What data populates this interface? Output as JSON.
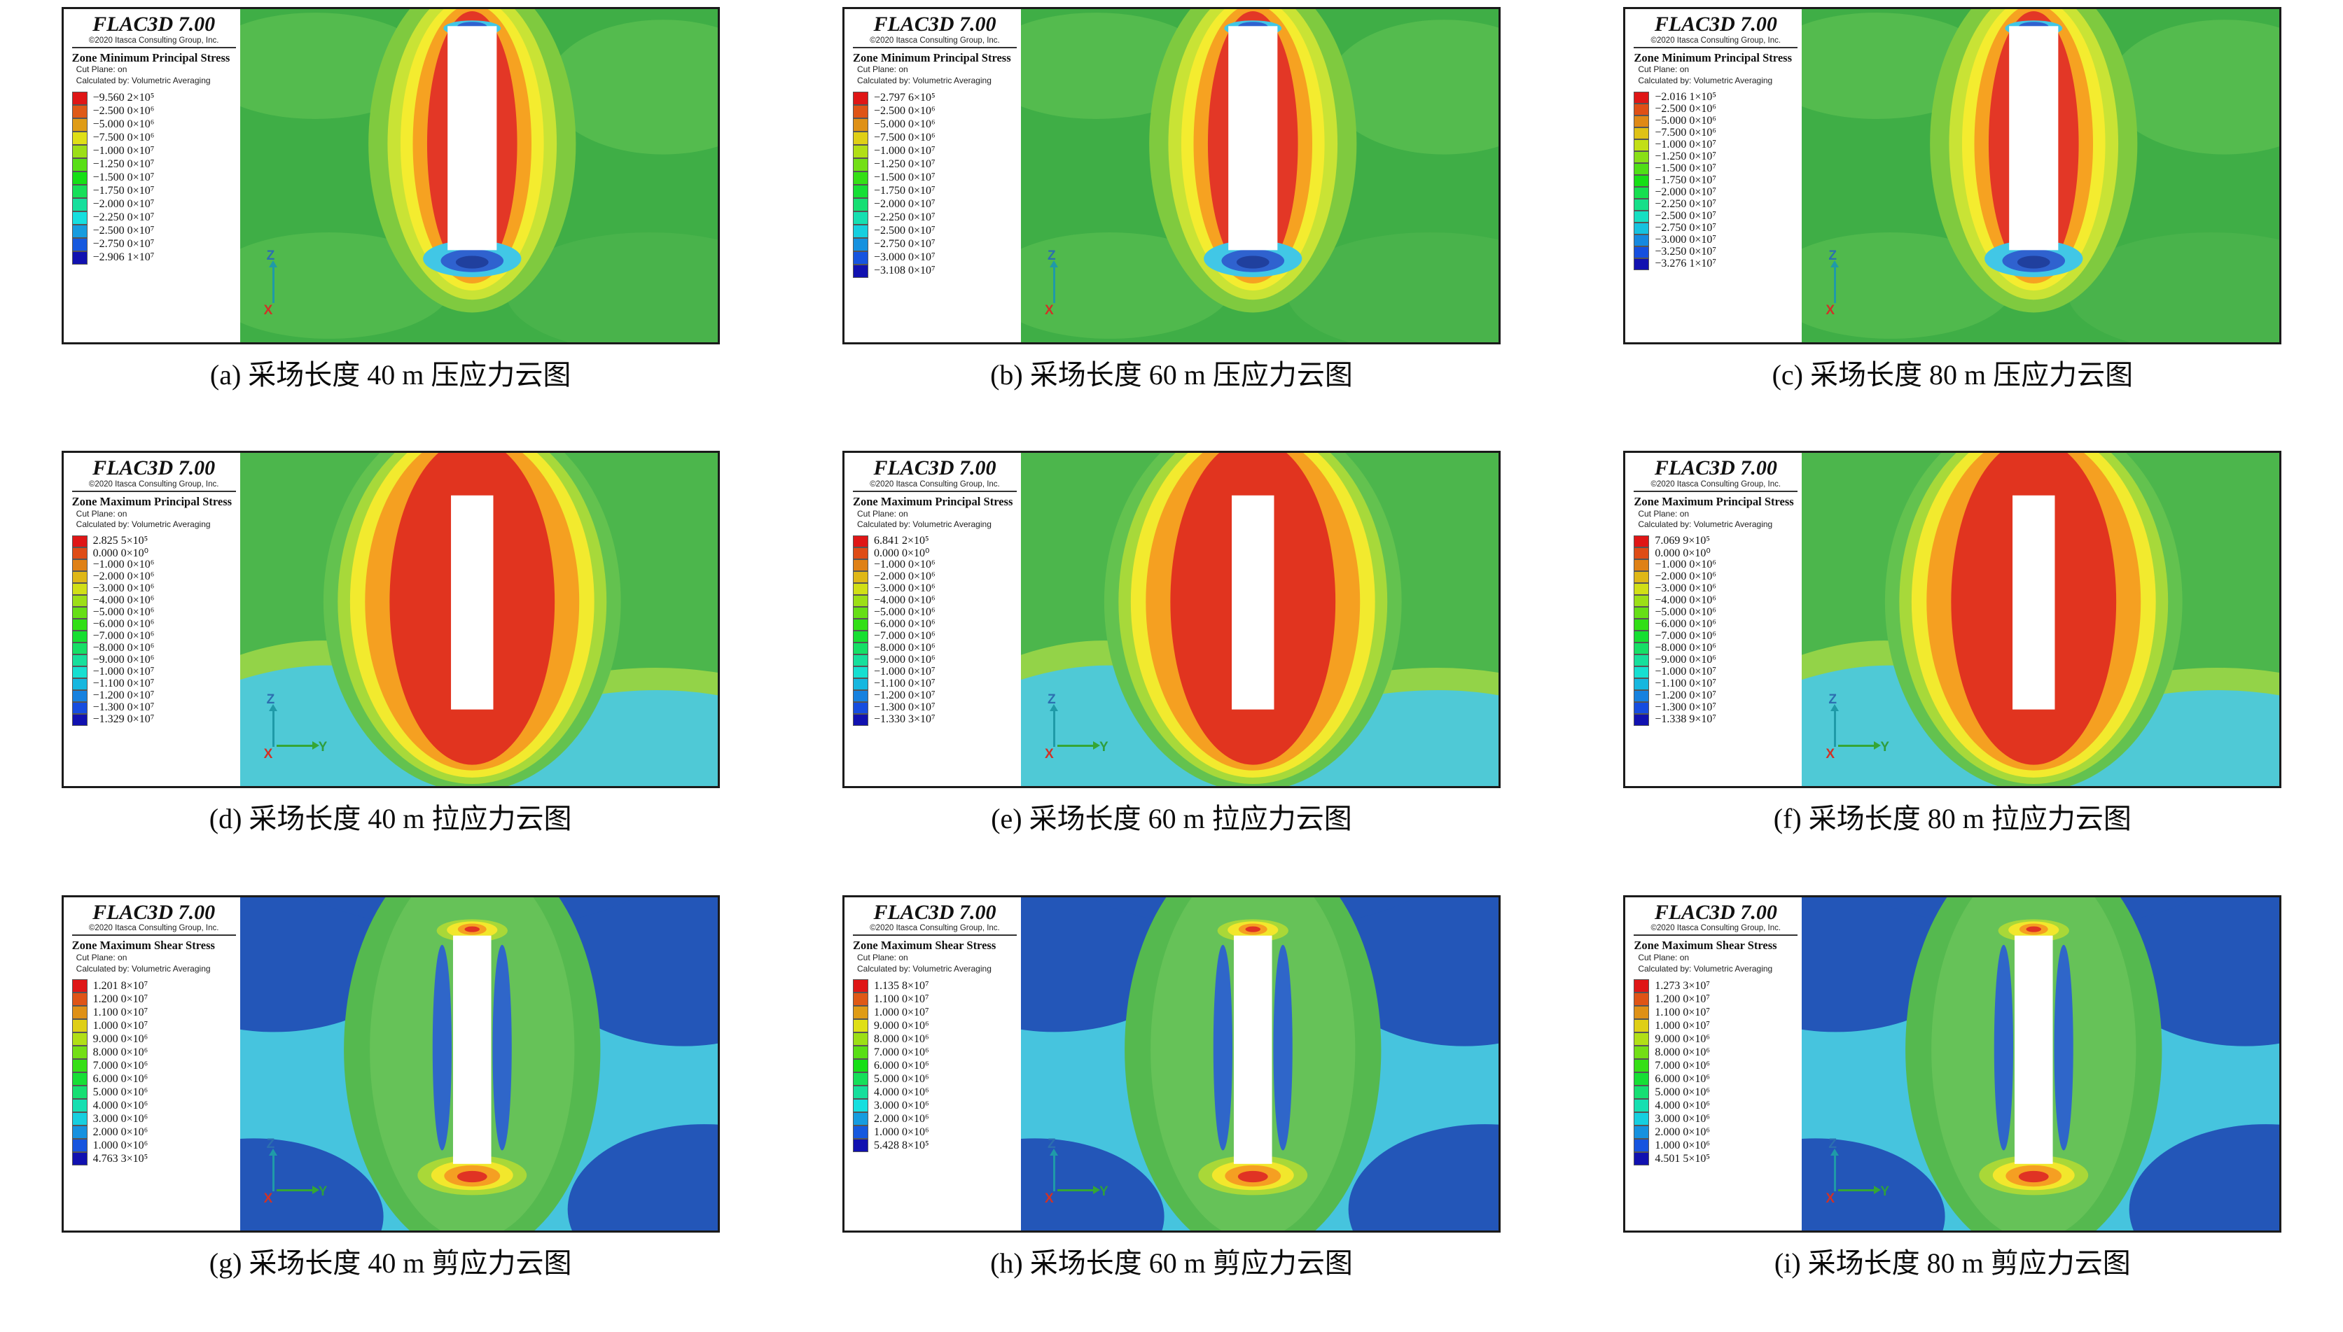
{
  "common": {
    "app_title": "FLAC3D 7.00",
    "copyright": "©2020 Itasca Consulting Group, Inc.",
    "cut_plane": "Cut Plane: on",
    "calc_method": "Calculated by: Volumetric Averaging"
  },
  "chart_data": {
    "type": "heatmap",
    "description": "3x3 grid of FLAC3D stress contour plots (compression, tension, shear) for stope lengths 40 m, 60 m, 80 m",
    "panels": [
      {
        "id": "a",
        "caption": "(a) 采场长度 40 m 压应力云图",
        "legend_title": "Zone Minimum Principal Stress",
        "plot_type": "compression",
        "axes": [
          "Z",
          "X"
        ],
        "scale": [
          "−9.560 2×10⁵",
          "−2.500 0×10⁶",
          "−5.000 0×10⁶",
          "−7.500 0×10⁶",
          "−1.000 0×10⁷",
          "−1.250 0×10⁷",
          "−1.500 0×10⁷",
          "−1.750 0×10⁷",
          "−2.000 0×10⁷",
          "−2.250 0×10⁷",
          "−2.500 0×10⁷",
          "−2.750 0×10⁷",
          "−2.906 1×10⁷"
        ]
      },
      {
        "id": "b",
        "caption": "(b) 采场长度 60 m 压应力云图",
        "legend_title": "Zone Minimum Principal Stress",
        "plot_type": "compression",
        "axes": [
          "Z",
          "X"
        ],
        "scale": [
          "−2.797 6×10⁵",
          "−2.500 0×10⁶",
          "−5.000 0×10⁶",
          "−7.500 0×10⁶",
          "−1.000 0×10⁷",
          "−1.250 0×10⁷",
          "−1.500 0×10⁷",
          "−1.750 0×10⁷",
          "−2.000 0×10⁷",
          "−2.250 0×10⁷",
          "−2.500 0×10⁷",
          "−2.750 0×10⁷",
          "−3.000 0×10⁷",
          "−3.108 0×10⁷"
        ]
      },
      {
        "id": "c",
        "caption": "(c) 采场长度 80 m 压应力云图",
        "legend_title": "Zone Minimum Principal Stress",
        "plot_type": "compression",
        "axes": [
          "Z",
          "X"
        ],
        "scale": [
          "−2.016 1×10⁵",
          "−2.500 0×10⁶",
          "−5.000 0×10⁶",
          "−7.500 0×10⁶",
          "−1.000 0×10⁷",
          "−1.250 0×10⁷",
          "−1.500 0×10⁷",
          "−1.750 0×10⁷",
          "−2.000 0×10⁷",
          "−2.250 0×10⁷",
          "−2.500 0×10⁷",
          "−2.750 0×10⁷",
          "−3.000 0×10⁷",
          "−3.250 0×10⁷",
          "−3.276 1×10⁷"
        ]
      },
      {
        "id": "d",
        "caption": "(d) 采场长度 40 m 拉应力云图",
        "legend_title": "Zone Maximum Principal Stress",
        "plot_type": "tension",
        "axes": [
          "Z",
          "X",
          "Y"
        ],
        "scale": [
          "2.825 5×10⁵",
          "0.000 0×10⁰",
          "−1.000 0×10⁶",
          "−2.000 0×10⁶",
          "−3.000 0×10⁶",
          "−4.000 0×10⁶",
          "−5.000 0×10⁶",
          "−6.000 0×10⁶",
          "−7.000 0×10⁶",
          "−8.000 0×10⁶",
          "−9.000 0×10⁶",
          "−1.000 0×10⁷",
          "−1.100 0×10⁷",
          "−1.200 0×10⁷",
          "−1.300 0×10⁷",
          "−1.329 0×10⁷"
        ]
      },
      {
        "id": "e",
        "caption": "(e) 采场长度 60 m 拉应力云图",
        "legend_title": "Zone Maximum Principal Stress",
        "plot_type": "tension",
        "axes": [
          "Z",
          "X",
          "Y"
        ],
        "scale": [
          "6.841 2×10⁵",
          "0.000 0×10⁰",
          "−1.000 0×10⁶",
          "−2.000 0×10⁶",
          "−3.000 0×10⁶",
          "−4.000 0×10⁶",
          "−5.000 0×10⁶",
          "−6.000 0×10⁶",
          "−7.000 0×10⁶",
          "−8.000 0×10⁶",
          "−9.000 0×10⁶",
          "−1.000 0×10⁷",
          "−1.100 0×10⁷",
          "−1.200 0×10⁷",
          "−1.300 0×10⁷",
          "−1.330 3×10⁷"
        ]
      },
      {
        "id": "f",
        "caption": "(f) 采场长度 80 m 拉应力云图",
        "legend_title": "Zone Maximum Principal Stress",
        "plot_type": "tension",
        "axes": [
          "Z",
          "X",
          "Y"
        ],
        "scale": [
          "7.069 9×10⁵",
          "0.000 0×10⁰",
          "−1.000 0×10⁶",
          "−2.000 0×10⁶",
          "−3.000 0×10⁶",
          "−4.000 0×10⁶",
          "−5.000 0×10⁶",
          "−6.000 0×10⁶",
          "−7.000 0×10⁶",
          "−8.000 0×10⁶",
          "−9.000 0×10⁶",
          "−1.000 0×10⁷",
          "−1.100 0×10⁷",
          "−1.200 0×10⁷",
          "−1.300 0×10⁷",
          "−1.338 9×10⁷"
        ]
      },
      {
        "id": "g",
        "caption": "(g) 采场长度 40 m 剪应力云图",
        "legend_title": "Zone Maximum Shear Stress",
        "plot_type": "shear",
        "axes": [
          "Z",
          "X",
          "Y"
        ],
        "scale": [
          "1.201 8×10⁷",
          "1.200 0×10⁷",
          "1.100 0×10⁷",
          "1.000 0×10⁷",
          "9.000 0×10⁶",
          "8.000 0×10⁶",
          "7.000 0×10⁶",
          "6.000 0×10⁶",
          "5.000 0×10⁶",
          "4.000 0×10⁶",
          "3.000 0×10⁶",
          "2.000 0×10⁶",
          "1.000 0×10⁶",
          "4.763 3×10⁵"
        ]
      },
      {
        "id": "h",
        "caption": "(h) 采场长度 60 m 剪应力云图",
        "legend_title": "Zone Maximum Shear Stress",
        "plot_type": "shear",
        "axes": [
          "Z",
          "X",
          "Y"
        ],
        "scale": [
          "1.135 8×10⁷",
          "1.100 0×10⁷",
          "1.000 0×10⁷",
          "9.000 0×10⁶",
          "8.000 0×10⁶",
          "7.000 0×10⁶",
          "6.000 0×10⁶",
          "5.000 0×10⁶",
          "4.000 0×10⁶",
          "3.000 0×10⁶",
          "2.000 0×10⁶",
          "1.000 0×10⁶",
          "5.428 8×10⁵"
        ]
      },
      {
        "id": "i",
        "caption": "(i) 采场长度 80 m 剪应力云图",
        "legend_title": "Zone Maximum Shear Stress",
        "plot_type": "shear",
        "axes": [
          "Z",
          "X",
          "Y"
        ],
        "scale": [
          "1.273 3×10⁷",
          "1.200 0×10⁷",
          "1.100 0×10⁷",
          "1.000 0×10⁷",
          "9.000 0×10⁶",
          "8.000 0×10⁶",
          "7.000 0×10⁶",
          "6.000 0×10⁶",
          "5.000 0×10⁶",
          "4.000 0×10⁶",
          "3.000 0×10⁶",
          "2.000 0×10⁶",
          "1.000 0×10⁶",
          "4.501 5×10⁵"
        ]
      }
    ],
    "legend_colormap": {
      "top": "#e03324",
      "bottom": "#20409e",
      "style": "rainbow discrete bands"
    }
  }
}
